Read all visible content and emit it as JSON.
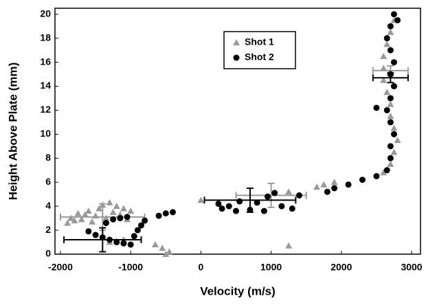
{
  "chart_data": {
    "type": "scatter",
    "x_label": "Velocity (m/s)",
    "y_label": "Height Above Plate (mm)",
    "xlim": [
      -2078,
      3127
    ],
    "ylim": [
      0,
      20.5
    ],
    "xticks": [
      -2000,
      -1000,
      0,
      1000,
      2000,
      3000
    ],
    "yticks": [
      0,
      2,
      4,
      6,
      8,
      10,
      12,
      14,
      16,
      18,
      20
    ],
    "legend": "upper center",
    "series": [
      {
        "name": "Shot 1",
        "color": "#999999",
        "marker": "triangle",
        "x": [
          -1900,
          -1850,
          -1800,
          -1750,
          -1700,
          -1650,
          -1600,
          -1550,
          -1500,
          -1450,
          -1400,
          -1350,
          -1300,
          -1250,
          -1200,
          -1150,
          -1100,
          -1050,
          -1000,
          -1300,
          -1200,
          -1100,
          -650,
          -550,
          -450,
          -500,
          0,
          1050,
          1250,
          1250,
          1650,
          1750,
          1900,
          2600,
          2700,
          2750,
          2800,
          2750,
          2700,
          2700,
          2650,
          2600,
          2600,
          2600,
          2650,
          2700,
          2750
        ],
        "values": [
          2.6,
          3.0,
          2.8,
          3.4,
          2.9,
          3.3,
          3.6,
          2.7,
          3.2,
          3.8,
          4.1,
          3.0,
          4.3,
          3.5,
          4.0,
          3.3,
          3.8,
          2.9,
          3.6,
          1.0,
          1.1,
          1.2,
          0.8,
          0.5,
          0.2,
          0.0,
          4.5,
          5.1,
          5.2,
          0.7,
          5.6,
          5.8,
          6.0,
          6.8,
          7.5,
          8.5,
          9.5,
          10.5,
          11.5,
          12.5,
          13.5,
          14.5,
          15.5,
          16.5,
          17.5,
          18.5,
          19.5
        ],
        "errorbars": [
          {
            "x": -1400,
            "y": 3.1,
            "xerr": 600,
            "yerr": 1.1
          },
          {
            "x": 1000,
            "y": 4.9,
            "xerr": 500,
            "yerr": 1.0
          },
          {
            "x": 2700,
            "y": 15.3,
            "xerr": 250,
            "yerr": 0.4
          }
        ]
      },
      {
        "name": "Shot 2",
        "color": "#000000",
        "marker": "circle",
        "x": [
          -1600,
          -1500,
          -1400,
          -1300,
          -1200,
          -1100,
          -1000,
          -950,
          -900,
          -850,
          -800,
          -1350,
          -1250,
          -1150,
          -1050,
          -600,
          -500,
          -400,
          250,
          300,
          400,
          500,
          550,
          700,
          800,
          900,
          950,
          1050,
          1150,
          1300,
          1400,
          1800,
          1900,
          2100,
          2300,
          2500,
          2650,
          2700,
          2700,
          2750,
          2700,
          2650,
          2500,
          2700,
          2750,
          2700,
          2750,
          2700,
          2650,
          2700,
          2750,
          2800
        ],
        "values": [
          1.9,
          1.6,
          1.4,
          1.2,
          1.0,
          0.9,
          0.8,
          1.5,
          2.0,
          2.4,
          2.8,
          2.6,
          2.9,
          3.0,
          3.1,
          3.2,
          3.4,
          3.5,
          4.2,
          3.8,
          4.0,
          3.6,
          4.4,
          3.7,
          4.3,
          3.6,
          4.8,
          5.1,
          4.0,
          3.8,
          4.9,
          5.2,
          5.5,
          5.8,
          6.2,
          6.5,
          7.0,
          8.0,
          9.0,
          10.0,
          11.0,
          12.0,
          12.2,
          13.0,
          14.0,
          15.0,
          16.0,
          17.0,
          18.0,
          19.0,
          20.0,
          19.5
        ],
        "errorbars": [
          {
            "x": -1400,
            "y": 1.2,
            "xerr": 550,
            "yerr": 1.0
          },
          {
            "x": 700,
            "y": 4.5,
            "xerr": 650,
            "yerr": 1.0
          },
          {
            "x": 2700,
            "y": 14.7,
            "xerr": 250,
            "yerr": 0.4
          }
        ]
      }
    ]
  }
}
